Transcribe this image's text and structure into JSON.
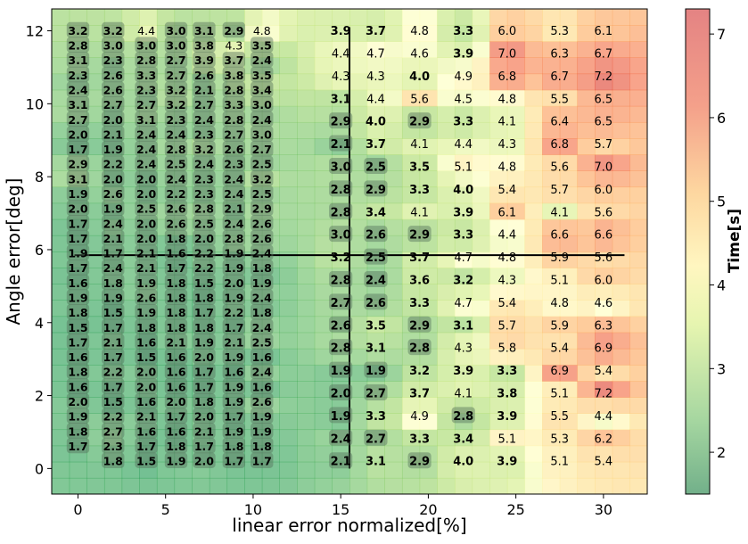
{
  "chart_data": {
    "type": "heatmap",
    "xlabel": "linear error normalized[%]",
    "ylabel": "Angle error[deg]",
    "colorbar_label": "Time[s]",
    "colormap": "RdYlGn_r",
    "colorbar_range": [
      1.5,
      7.3
    ],
    "colorbar_ticks": [
      "2",
      "3",
      "4",
      "5",
      "6",
      "7"
    ],
    "x_range": [
      -1.5,
      32.5
    ],
    "y_range": [
      -0.7,
      12.6
    ],
    "x_ticks": [
      "0",
      "5",
      "10",
      "15",
      "20",
      "25",
      "30"
    ],
    "y_ticks": [
      "0",
      "2",
      "4",
      "6",
      "8",
      "10",
      "12"
    ],
    "reference_lines": {
      "vertical_x": 15.5,
      "horizontal_y": 5.85
    },
    "coarse_grid": {
      "x": [
        15,
        17,
        19.5,
        22,
        24.5,
        27.5,
        30
      ],
      "y": [
        12.1,
        11.1,
        10.2,
        9.3,
        8.4,
        7.5,
        6.6,
        5.8,
        4.9,
        4.0,
        3.1,
        2.2,
        1.3,
        0.4
      ],
      "labels": [
        [
          "3.9",
          "3.7",
          "4.8",
          "3.3",
          "6.0",
          "5.3",
          "6.1"
        ],
        [
          "4.4",
          "4.7",
          "4.6",
          "3.9",
          "7.0",
          "6.3",
          "6.7"
        ],
        [
          "4.3",
          "4.3",
          "4.0",
          "4.9",
          "6.8",
          "6.7",
          "7.2"
        ],
        [
          "3.1",
          "4.4",
          "5.6",
          "4.5",
          "4.8",
          "5.5",
          "6.5"
        ],
        [
          "2.9",
          "4.0",
          "2.9",
          "3.3",
          "4.1",
          "6.4",
          "6.5"
        ],
        [
          "2.1",
          "3.7",
          "4.1",
          "4.4",
          "4.3",
          "6.8",
          "5.7"
        ],
        [
          "3.0",
          "2.5",
          "3.5",
          "5.1",
          "4.8",
          "5.6",
          "7.0"
        ],
        [
          "2.8",
          "2.9",
          "3.3",
          "4.0",
          "5.4",
          "5.7",
          "6.0"
        ],
        [
          "2.8",
          "3.4",
          "4.1",
          "3.9",
          "6.1",
          "4.1",
          "5.6"
        ],
        [
          "3.0",
          "2.6",
          "2.9",
          "3.3",
          "4.4",
          "6.6",
          "6.6"
        ],
        [
          "3.2",
          "2.5",
          "3.7",
          "4.7",
          "4.8",
          "5.9",
          "5.6"
        ],
        [
          "2.8",
          "2.4",
          "3.6",
          "3.2",
          "4.3",
          "5.1",
          "6.0"
        ],
        [
          "2.7",
          "2.6",
          "3.3",
          "4.7",
          "5.4",
          "4.8",
          "4.6"
        ],
        [
          "2.6",
          "3.5",
          "2.9",
          "3.1",
          "5.7",
          "5.9",
          "6.3"
        ],
        [
          "2.8",
          "3.1",
          "2.8",
          "4.3",
          "5.8",
          "5.4",
          "6.9"
        ],
        [
          "1.9",
          "1.9",
          "3.2",
          "3.9",
          "3.3",
          "6.9",
          "5.4"
        ],
        [
          "2.0",
          "2.7",
          "3.7",
          "4.1",
          "3.8",
          "5.1",
          "7.2"
        ],
        [
          "1.9",
          "3.3",
          "4.9",
          "2.8",
          "3.9",
          "5.5",
          "4.4"
        ],
        [
          "2.4",
          "2.7",
          "3.3",
          "3.4",
          "5.1",
          "5.3",
          "6.2"
        ],
        [
          "2.1",
          "3.1",
          "2.9",
          "4.0",
          "3.9",
          "5.1",
          "5.4"
        ]
      ],
      "label_y": [
        12.0,
        11.2,
        10.4,
        9.6,
        8.8,
        8.0,
        7.2,
        6.4,
        5.6,
        4.8,
        4.1,
        3.3,
        2.6,
        1.9,
        1.2,
        0.4,
        -0.2,
        -0.4,
        -0.5,
        -0.6
      ]
    },
    "fine_grid": {
      "x": [
        0,
        2,
        3.9,
        5.6,
        7.2,
        8.9,
        10.5
      ],
      "labels": [
        [
          "3.2",
          "3.2",
          "4.4",
          "3.0",
          "3.1",
          "2.9",
          "4.8"
        ],
        [
          "2.8",
          "3.0",
          "3.0",
          "3.0",
          "3.8",
          "4.3",
          "3.5"
        ],
        [
          "3.1",
          "2.3",
          "2.8",
          "2.7",
          "3.9",
          "3.7",
          "2.4"
        ],
        [
          "2.3",
          "2.6",
          "3.3",
          "2.7",
          "2.6",
          "3.8",
          "3.5"
        ],
        [
          "2.4",
          "2.6",
          "2.3",
          "3.2",
          "2.1",
          "2.8",
          "3.4"
        ],
        [
          "3.1",
          "2.7",
          "2.7",
          "3.2",
          "2.7",
          "3.3",
          "3.0"
        ],
        [
          "2.7",
          "2.0",
          "3.1",
          "2.3",
          "2.4",
          "2.8",
          "2.4"
        ],
        [
          "2.0",
          "2.1",
          "2.4",
          "2.4",
          "2.3",
          "2.7",
          "3.0"
        ],
        [
          "1.7",
          "1.9",
          "2.4",
          "2.8",
          "3.2",
          "2.6",
          "2.7"
        ],
        [
          "2.9",
          "2.2",
          "2.4",
          "2.5",
          "2.4",
          "2.3",
          "2.5"
        ],
        [
          "3.1",
          "2.0",
          "2.0",
          "2.4",
          "2.3",
          "2.4",
          "3.2"
        ],
        [
          "1.9",
          "2.6",
          "2.0",
          "2.2",
          "2.3",
          "2.4",
          "2.5"
        ],
        [
          "2.0",
          "1.9",
          "2.5",
          "2.6",
          "2.8",
          "2.1",
          "2.9"
        ],
        [
          "1.7",
          "2.4",
          "2.0",
          "2.6",
          "2.5",
          "2.4",
          "2.6"
        ],
        [
          "1.7",
          "2.1",
          "2.0",
          "1.8",
          "2.0",
          "2.8",
          "2.6"
        ],
        [
          "1.9",
          "1.7",
          "2.1",
          "1.6",
          "2.2",
          "1.9",
          "2.4"
        ],
        [
          "1.7",
          "2.4",
          "2.1",
          "1.7",
          "2.2",
          "1.9",
          "1.8"
        ],
        [
          "1.6",
          "1.8",
          "1.9",
          "1.8",
          "1.5",
          "2.0",
          "1.9"
        ],
        [
          "1.9",
          "1.9",
          "2.6",
          "1.8",
          "1.8",
          "1.9",
          "2.4"
        ],
        [
          "1.8",
          "1.5",
          "1.9",
          "1.8",
          "1.7",
          "2.2",
          "1.8"
        ],
        [
          "1.5",
          "1.7",
          "1.8",
          "1.8",
          "1.8",
          "1.7",
          "2.4"
        ],
        [
          "1.7",
          "2.1",
          "1.6",
          "2.1",
          "1.9",
          "2.1",
          "2.5"
        ],
        [
          "1.6",
          "1.7",
          "1.5",
          "1.6",
          "2.0",
          "1.9",
          "1.6"
        ],
        [
          "1.8",
          "2.2",
          "2.0",
          "1.6",
          "1.7",
          "1.6",
          "2.4"
        ],
        [
          "1.6",
          "1.7",
          "2.0",
          "1.6",
          "1.7",
          "1.9",
          "1.6"
        ],
        [
          "2.0",
          "1.5",
          "1.6",
          "2.0",
          "1.8",
          "1.9",
          "2.6"
        ],
        [
          "1.9",
          "2.2",
          "2.1",
          "1.7",
          "2.0",
          "1.7",
          "1.9"
        ],
        [
          "1.8",
          "2.7",
          "1.6",
          "1.6",
          "2.1",
          "1.9",
          "1.9"
        ],
        [
          "1.7",
          "2.3",
          "1.7",
          "1.8",
          "1.7",
          "1.8",
          "1.8"
        ],
        [
          "",
          "1.8",
          "1.5",
          "1.9",
          "2.0",
          "1.7",
          "1.7"
        ]
      ]
    }
  }
}
